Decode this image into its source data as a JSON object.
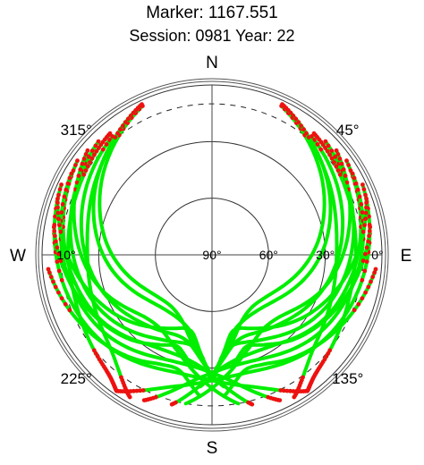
{
  "chart_data": {
    "type": "polar-skyplot",
    "title": "Marker: 1167.551",
    "subtitle": "Session: 0981 Year: 22",
    "cardinals": {
      "north": "N",
      "east": "E",
      "south": "S",
      "west": "W"
    },
    "azimuth_labels": [
      "315°",
      "45°",
      "225°",
      "135°"
    ],
    "azimuth_angles": [
      315,
      45,
      225,
      135
    ],
    "elevation_labels": [
      "90°",
      "60°",
      "30°",
      "0°",
      "10°"
    ],
    "elevation_values": [
      90,
      60,
      30,
      0,
      10
    ],
    "elevation_mask_deg": 10,
    "track_color": "#00ee00",
    "low_elevation_color": "#ee1111",
    "mask_circle_style": "dashed",
    "tracks": [
      {
        "az": [
          45,
          110,
          150,
          170,
          180
        ],
        "el": [
          5,
          22,
          38,
          40,
          25
        ]
      },
      {
        "az": [
          40,
          100,
          140,
          165,
          185
        ],
        "el": [
          8,
          26,
          40,
          42,
          20
        ]
      },
      {
        "az": [
          55,
          115,
          150,
          175,
          195
        ],
        "el": [
          3,
          20,
          33,
          30,
          8
        ]
      },
      {
        "az": [
          60,
          120,
          160,
          185,
          205
        ],
        "el": [
          4,
          18,
          30,
          25,
          5
        ]
      },
      {
        "az": [
          65,
          125,
          165,
          195,
          215
        ],
        "el": [
          2,
          15,
          25,
          18,
          2
        ]
      },
      {
        "az": [
          70,
          118,
          150,
          165,
          175
        ],
        "el": [
          3,
          28,
          45,
          48,
          35
        ]
      },
      {
        "az": [
          80,
          130,
          150,
          160,
          170
        ],
        "el": [
          5,
          25,
          35,
          38,
          30
        ]
      },
      {
        "az": [
          95,
          140,
          155,
          165,
          175
        ],
        "el": [
          3,
          20,
          26,
          26,
          15
        ]
      },
      {
        "az": [
          30,
          85,
          130,
          160,
          175
        ],
        "el": [
          5,
          30,
          50,
          50,
          35
        ]
      },
      {
        "az": [
          25,
          80,
          125,
          155,
          178
        ],
        "el": [
          3,
          32,
          53,
          52,
          30
        ]
      },
      {
        "az": [
          50,
          100,
          135,
          160,
          190
        ],
        "el": [
          4,
          25,
          42,
          36,
          10
        ]
      },
      {
        "az": [
          315,
          250,
          210,
          190,
          180
        ],
        "el": [
          5,
          22,
          38,
          40,
          25
        ]
      },
      {
        "az": [
          320,
          260,
          220,
          195,
          175
        ],
        "el": [
          8,
          26,
          40,
          42,
          20
        ]
      },
      {
        "az": [
          305,
          245,
          210,
          185,
          165
        ],
        "el": [
          3,
          20,
          33,
          30,
          8
        ]
      },
      {
        "az": [
          300,
          240,
          200,
          175,
          155
        ],
        "el": [
          4,
          18,
          30,
          25,
          5
        ]
      },
      {
        "az": [
          295,
          235,
          195,
          165,
          145
        ],
        "el": [
          2,
          15,
          25,
          18,
          2
        ]
      },
      {
        "az": [
          290,
          242,
          210,
          195,
          185
        ],
        "el": [
          3,
          28,
          45,
          48,
          35
        ]
      },
      {
        "az": [
          280,
          230,
          210,
          200,
          190
        ],
        "el": [
          5,
          25,
          35,
          38,
          30
        ]
      },
      {
        "az": [
          265,
          220,
          205,
          195,
          185
        ],
        "el": [
          3,
          20,
          26,
          26,
          15
        ]
      },
      {
        "az": [
          330,
          275,
          230,
          200,
          185
        ],
        "el": [
          5,
          30,
          50,
          50,
          35
        ]
      },
      {
        "az": [
          335,
          280,
          235,
          205,
          182
        ],
        "el": [
          3,
          32,
          53,
          52,
          30
        ]
      },
      {
        "az": [
          310,
          260,
          225,
          200,
          170
        ],
        "el": [
          4,
          25,
          42,
          36,
          10
        ]
      },
      {
        "az": [
          335,
          305,
          270,
          230,
          210
        ],
        "el": [
          2,
          16,
          24,
          18,
          3
        ]
      },
      {
        "az": [
          25,
          55,
          90,
          130,
          150
        ],
        "el": [
          2,
          16,
          24,
          18,
          3
        ]
      },
      {
        "az": [
          320,
          290,
          255,
          225,
          215
        ],
        "el": [
          6,
          12,
          14,
          8,
          2
        ]
      },
      {
        "az": [
          40,
          70,
          105,
          135,
          145
        ],
        "el": [
          6,
          12,
          14,
          8,
          2
        ]
      }
    ]
  }
}
